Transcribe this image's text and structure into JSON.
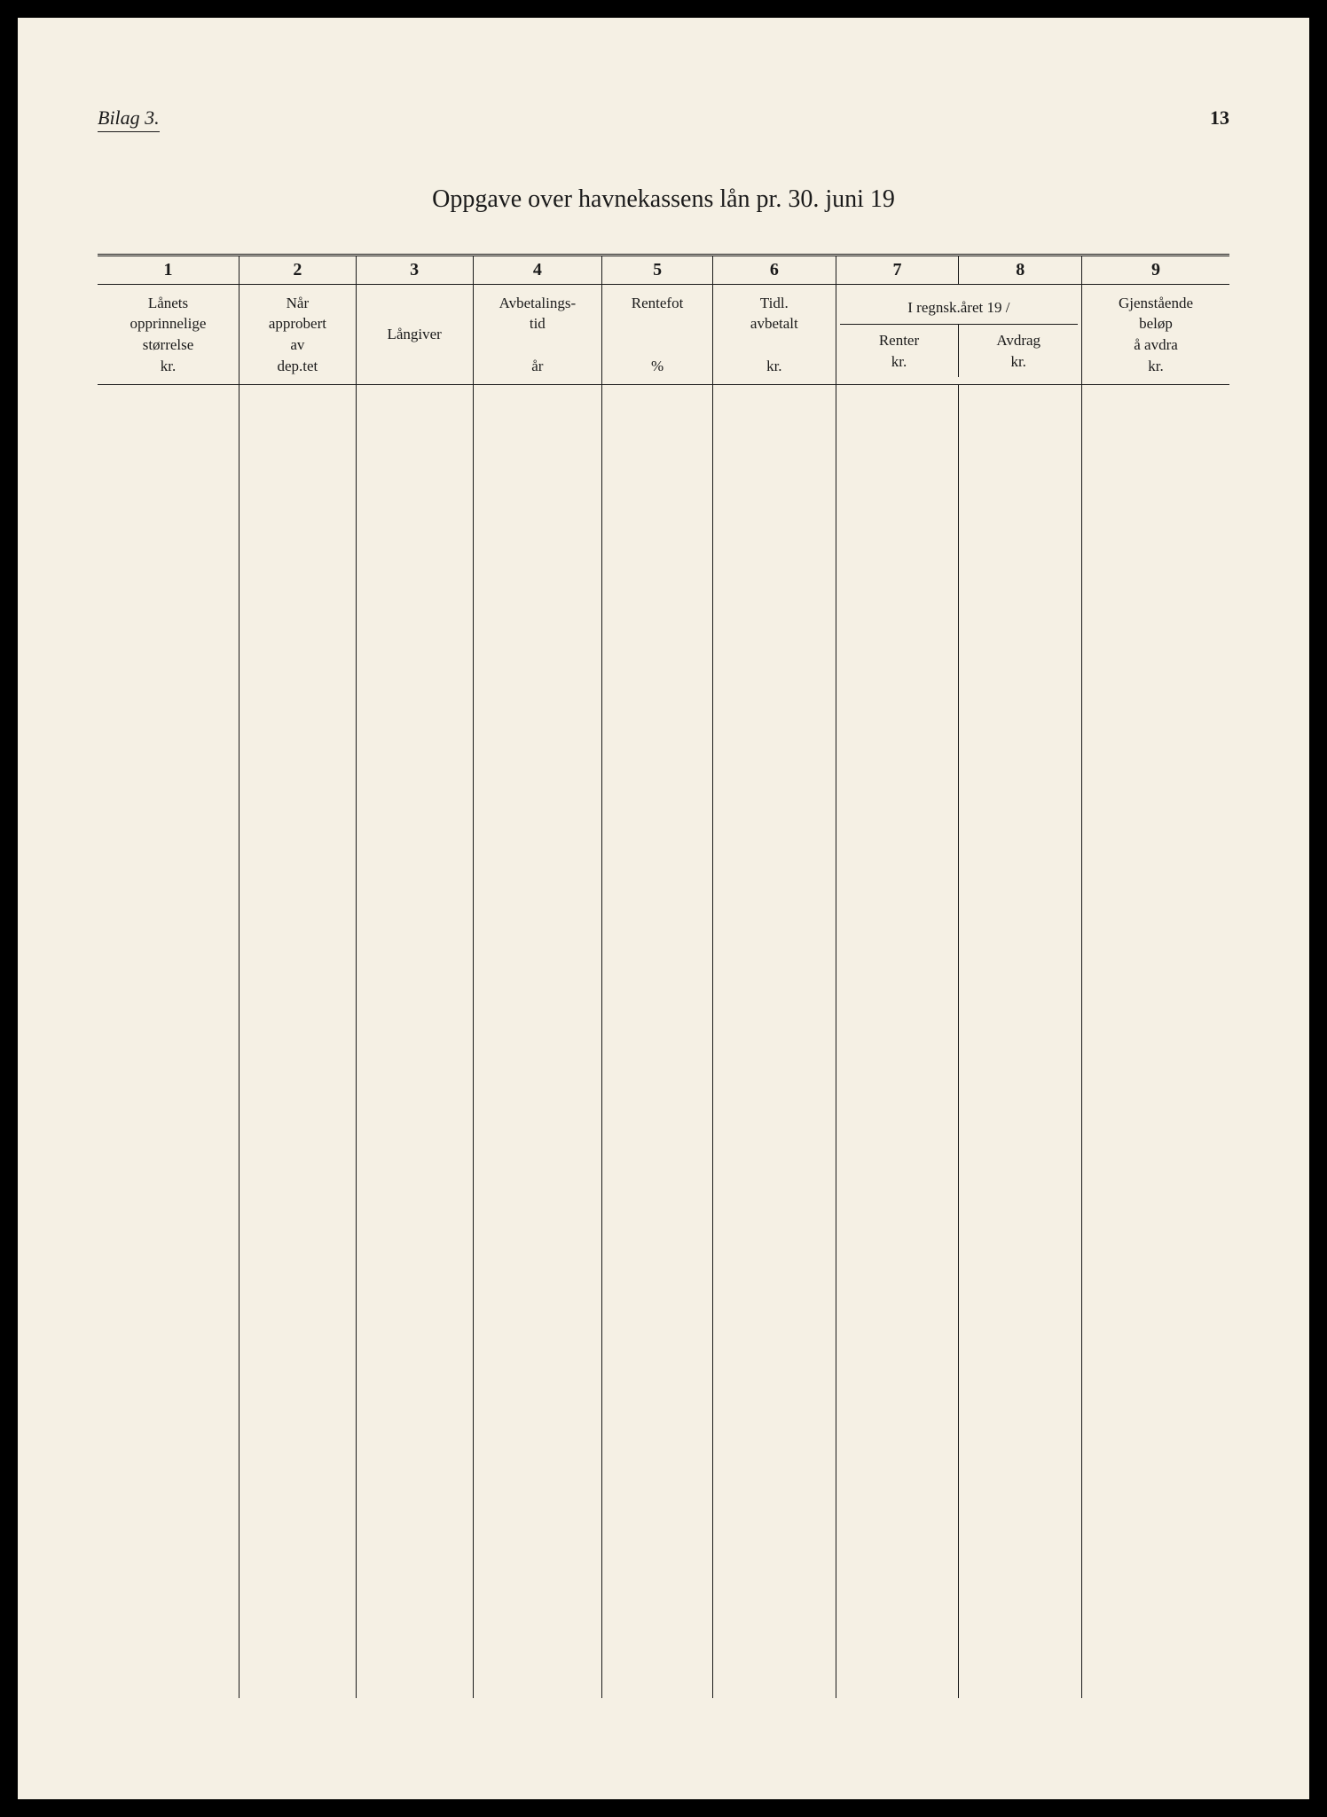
{
  "page": {
    "bilag_label": "Bilag 3.",
    "page_number": "13",
    "title": "Oppgave over havnekassens lån pr. 30. juni 19"
  },
  "table": {
    "column_numbers": [
      "1",
      "2",
      "3",
      "4",
      "5",
      "6",
      "7",
      "8",
      "9"
    ],
    "headers": {
      "col1": {
        "line1": "Lånets",
        "line2": "opprinnelige",
        "line3": "størrelse",
        "line4": "kr."
      },
      "col2": {
        "line1": "Når",
        "line2": "approbert",
        "line3": "av",
        "line4": "dep.tet"
      },
      "col3": {
        "line1": "Långiver"
      },
      "col4": {
        "line1": "Avbetalings-",
        "line2": "tid",
        "line3": "år"
      },
      "col5": {
        "line1": "Rentefot",
        "line2": "%"
      },
      "col6": {
        "line1": "Tidl.",
        "line2": "avbetalt",
        "line3": "kr."
      },
      "col78_span": "I regnsk.året 19     /",
      "col7": {
        "line1": "Renter",
        "line2": "kr."
      },
      "col8": {
        "line1": "Avdrag",
        "line2": "kr."
      },
      "col9": {
        "line1": "Gjenstående",
        "line2": "beløp",
        "line3": "å avdra",
        "line4": "kr."
      }
    },
    "column_widths_pct": [
      11.5,
      9.5,
      9.5,
      10.5,
      9,
      10,
      10,
      10,
      12
    ],
    "colors": {
      "page_background": "#f5f0e4",
      "text": "#1a1a1a",
      "rule": "#1a1a1a",
      "outer_background": "#000000"
    },
    "fonts": {
      "body_family": "Georgia, Times New Roman, serif",
      "title_size_pt": 21,
      "header_size_pt": 13,
      "number_size_pt": 15,
      "bilag_style": "italic"
    }
  }
}
